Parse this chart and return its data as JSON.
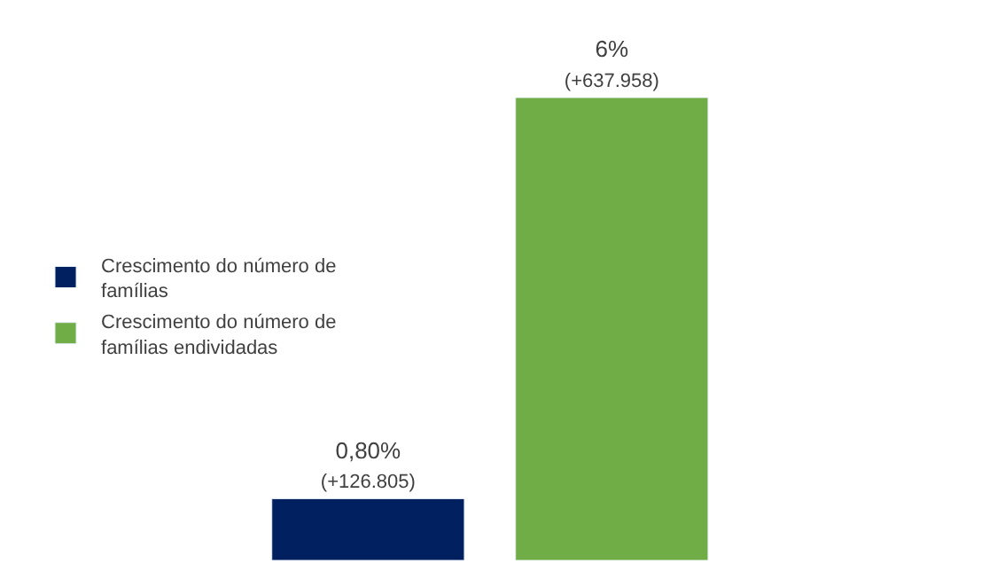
{
  "chart_data": {
    "type": "bar",
    "categories": [
      null
    ],
    "legend": "left",
    "series": [
      {
        "name": "Crescimento do número de famílias",
        "color": "#002060",
        "values": [
          0.8
        ],
        "value_labels": [
          "0,80%\n(+126.805)"
        ]
      },
      {
        "name": "Crescimento do número de famílias endividadas",
        "color": "#70ad47",
        "values": [
          6
        ],
        "value_labels": [
          "6%\n(+637.958)"
        ]
      }
    ]
  }
}
